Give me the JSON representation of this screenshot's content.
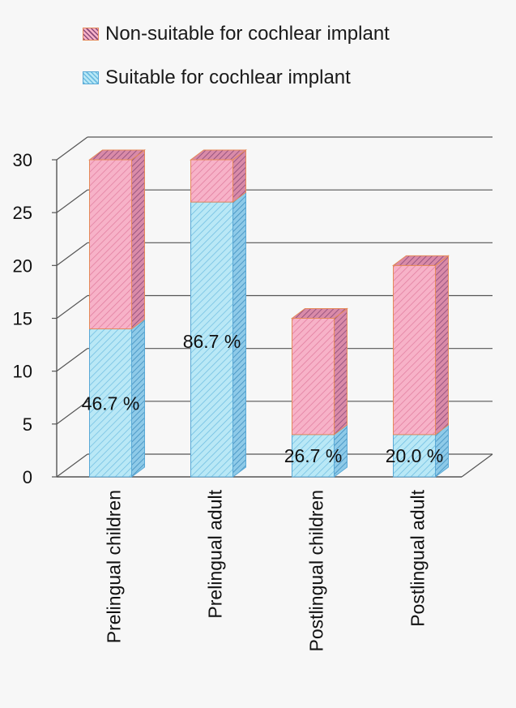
{
  "chart_data": {
    "type": "bar",
    "stacked": true,
    "three_d": true,
    "categories": [
      "Prelingual children",
      "Prelingual adult",
      "Postlingual children",
      "Postlingual adult"
    ],
    "series": [
      {
        "name": "Suitable for cochlear implant",
        "values": [
          14,
          26,
          4,
          4
        ],
        "color": "#aee3f3",
        "stroke": "#5aa9d6",
        "data_labels": [
          "46.7 %",
          "86.7 %",
          "26.7 %",
          "20.0 %"
        ]
      },
      {
        "name": "Non-suitable for cochlear implant",
        "values": [
          16,
          4,
          11,
          16
        ],
        "color": "#f4a6bf",
        "stroke": "#e58a5a",
        "data_labels": [
          "",
          "",
          "",
          ""
        ]
      }
    ],
    "ylim": [
      0,
      30
    ],
    "yticks": [
      "0",
      "5",
      "10",
      "15",
      "20",
      "25",
      "30"
    ],
    "grid": true,
    "legend_position": "top",
    "xlabel": "",
    "ylabel": "",
    "title": ""
  }
}
